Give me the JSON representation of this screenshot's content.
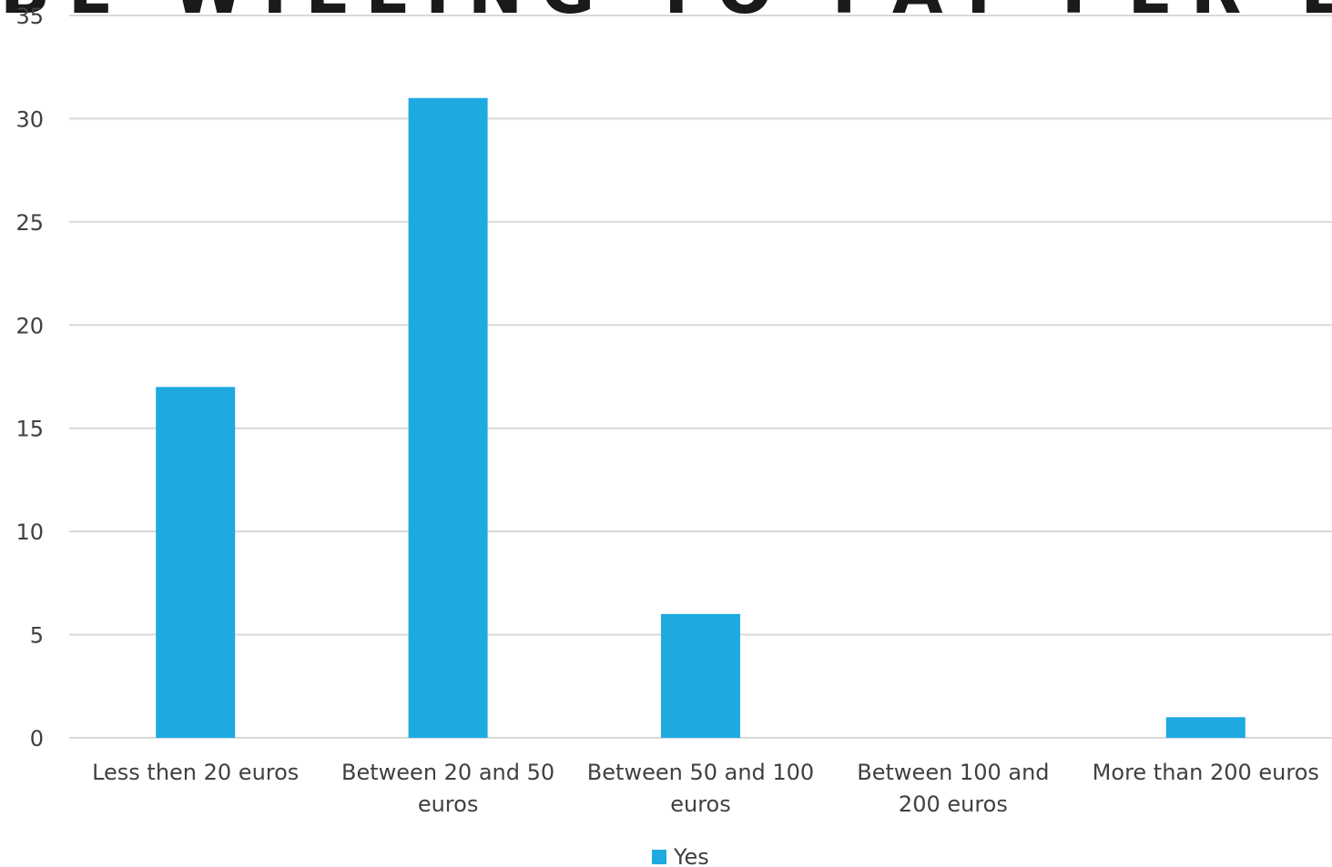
{
  "chart_data": {
    "type": "bar",
    "title": "BE WILLING TO PAY PER ECTS",
    "categories": [
      [
        "Less then 20 euros"
      ],
      [
        "Between 20 and 50",
        "euros"
      ],
      [
        "Between 50 and 100",
        "euros"
      ],
      [
        "Between 100 and",
        "200 euros"
      ],
      [
        "More than 200 euros"
      ]
    ],
    "series": [
      {
        "name": "Yes",
        "color": "#1EAAE1",
        "values": [
          17,
          31,
          6,
          0,
          1
        ]
      }
    ],
    "ylim": [
      0,
      35
    ],
    "yticks": [
      0,
      5,
      10,
      15,
      20,
      25,
      30,
      35
    ],
    "grid": true,
    "legend_position": "bottom",
    "colors": {
      "bar": "#1EAAE1",
      "grid": "#d9d9d9",
      "text": "#404040",
      "title": "#1a1a1a"
    }
  }
}
